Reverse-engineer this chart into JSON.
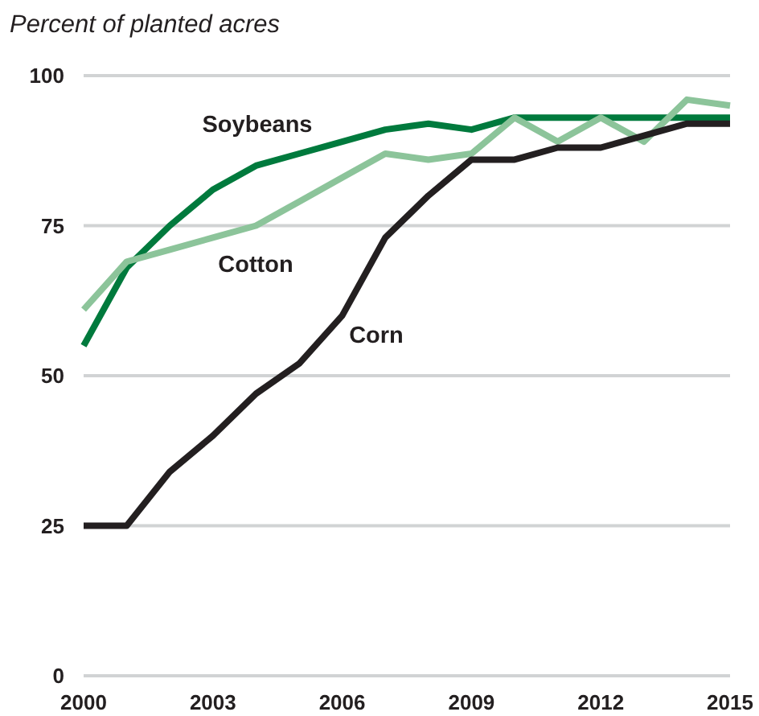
{
  "chart_data": {
    "type": "line",
    "title": "Percent of planted acres",
    "x": [
      2000,
      2001,
      2002,
      2003,
      2004,
      2005,
      2006,
      2007,
      2008,
      2009,
      2010,
      2011,
      2012,
      2013,
      2014,
      2015
    ],
    "series": [
      {
        "name": "Soybeans",
        "color": "#007a3d",
        "values": [
          55,
          68,
          75,
          81,
          85,
          87,
          89,
          91,
          92,
          91,
          93,
          93,
          93,
          93,
          93,
          93
        ]
      },
      {
        "name": "Cotton",
        "color": "#8cc49a",
        "values": [
          61,
          69,
          71,
          73,
          75,
          79,
          83,
          87,
          86,
          87,
          93,
          89,
          93,
          89,
          96,
          95
        ]
      },
      {
        "name": "Corn",
        "color": "#231f20",
        "values": [
          25,
          25,
          34,
          40,
          47,
          52,
          60,
          73,
          80,
          86,
          86,
          88,
          88,
          90,
          92,
          92
        ]
      }
    ],
    "xlim": [
      2000,
      2015
    ],
    "xticks": [
      2000,
      2003,
      2006,
      2009,
      2012,
      2015
    ],
    "ylim": [
      0,
      100
    ],
    "yticks": [
      0,
      25,
      50,
      75,
      100
    ],
    "grid": "y",
    "marker": "none",
    "line_style": "solid"
  }
}
